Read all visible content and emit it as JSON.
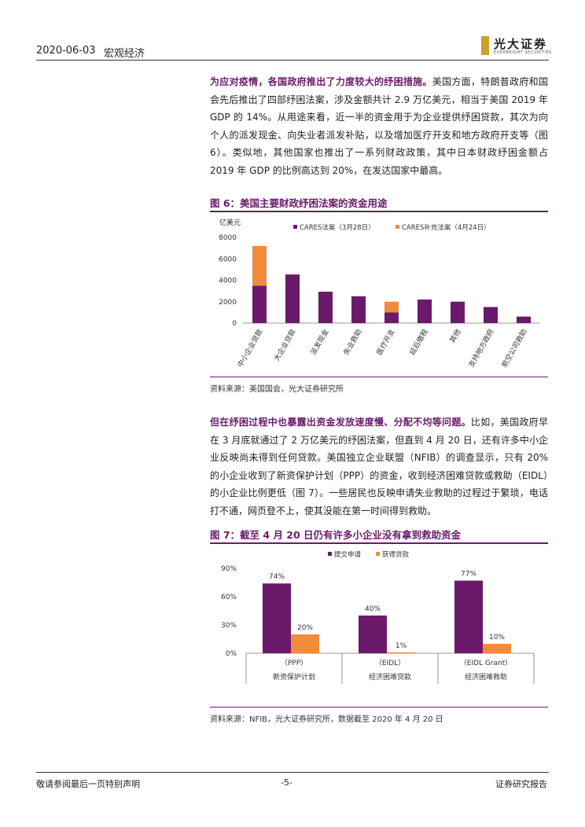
{
  "header": {
    "date": "2020-06-03",
    "category": "宏观经济",
    "logo_cn": "光大证券",
    "logo_en": "EVERBRIGHT SECURITIES"
  },
  "para1": {
    "lead": "为应对疫情，各国政府推出了力度较大的纾困措施。",
    "body": "美国方面，特朗普政府和国会先后推出了四部纾困法案，涉及金额共计 2.9 万亿美元，相当于美国 2019 年 GDP 的 14%。从用途来看，近一半的资金用于为企业提供纾困贷款，其次为向个人的派发现金、向失业者派发补贴，以及增加医疗开支和地方政府开支等（图 6）。类似地，其他国家也推出了一系列财政政策，其中日本财政纾困金额占 2019 年 GDP 的比例高达到 20%，在发达国家中最高。"
  },
  "fig6": {
    "title": "图 6：美国主要财政纾困法案的资金用途",
    "source": "资料来源：美国国会，光大证券研究所"
  },
  "para2": {
    "lead": "但在纾困过程中也暴露出资金发放速度慢、分配不均等问题。",
    "body": "比如，美国政府早在 3 月底就通过了 2 万亿美元的纾困法案，但直到 4 月 20 日，还有许多中小企业反映尚未得到任何贷款。美国独立企业联盟（NFIB）的调查显示，只有 20%的小企业收到了新资保护计划（PPP）的资金，收到经济困难贷款或救助（EIDL）的小企业比例更低（图 7）。一些居民也反映申请失业救助的过程过于繁琐，电话打不通，网页登不上，使其没能在第一时间得到救助。"
  },
  "fig7": {
    "title": "图 7：截至 4 月 20 日仍有许多小企业没有拿到救助资金",
    "source": "资料来源：NFIB，光大证券研究所，数据截至 2020 年 4 月 20 日"
  },
  "footer": {
    "left": "敬请参阅最后一页特别声明",
    "page": "-5-",
    "right": "证券研究报告"
  },
  "chart_data": [
    {
      "type": "bar",
      "stacked": true,
      "ylabel": "亿美元",
      "ylim": [
        0,
        8000
      ],
      "yticks": [
        0,
        2000,
        4000,
        6000,
        8000
      ],
      "legend_position": "top",
      "categories": [
        "中小企业贷款",
        "大企业贷款",
        "派发现金",
        "失业救助",
        "医疗开支",
        "延后缴税",
        "其他",
        "支持地方政府",
        "航空公司救助"
      ],
      "series": [
        {
          "name": "CARES法案（3月28日）",
          "color": "#6b1a6b",
          "values": [
            3490,
            4540,
            2930,
            2500,
            1000,
            2200,
            2000,
            1500,
            610
          ]
        },
        {
          "name": "CARES补充法案（4月24日）",
          "color": "#f08c3c",
          "values": [
            3710,
            0,
            0,
            0,
            1000,
            0,
            0,
            0,
            0
          ]
        }
      ]
    },
    {
      "type": "bar",
      "ylim": [
        0,
        90
      ],
      "yticks": [
        "0%",
        "30%",
        "60%",
        "90%"
      ],
      "legend_position": "top",
      "categories": [
        "（PPP）",
        "（EIDL）",
        "（EIDL Grant）"
      ],
      "group_labels": [
        "新资保护计划",
        "经济困难贷款",
        "经济困难救助"
      ],
      "series": [
        {
          "name": "提交申请",
          "color": "#6b1a6b",
          "values": [
            74,
            40,
            77
          ],
          "labels": [
            "74%",
            "40%",
            "77%"
          ]
        },
        {
          "name": "获得贷款",
          "color": "#f08c3c",
          "values": [
            20,
            1,
            10
          ],
          "labels": [
            "20%",
            "1%",
            "10%"
          ]
        }
      ]
    }
  ]
}
